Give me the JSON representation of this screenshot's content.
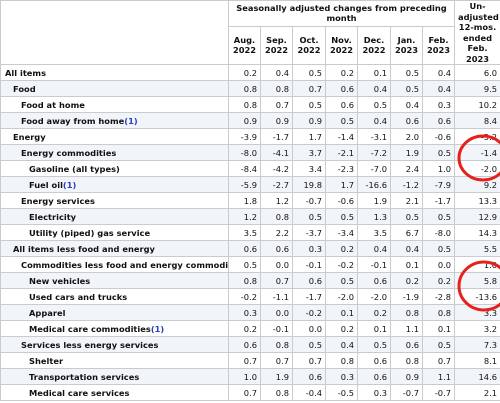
{
  "header": {
    "group": "Seasonally adjusted changes from preceding month",
    "months": [
      "Aug. 2022",
      "Sep. 2022",
      "Oct. 2022",
      "Nov. 2022",
      "Dec. 2022",
      "Jan. 2023",
      "Feb. 2023"
    ],
    "unadjusted": "Un-adjusted 12-mos. ended Feb. 2023"
  },
  "rows": [
    {
      "label": "All items",
      "values": [
        "0.2",
        "0.4",
        "0.5",
        "0.2",
        "0.1",
        "0.5",
        "0.4"
      ],
      "annual": "6.0"
    },
    {
      "label": "Food",
      "values": [
        "0.8",
        "0.8",
        "0.7",
        "0.6",
        "0.4",
        "0.5",
        "0.4"
      ],
      "annual": "9.5"
    },
    {
      "label": "Food at home",
      "values": [
        "0.8",
        "0.7",
        "0.5",
        "0.6",
        "0.5",
        "0.4",
        "0.3"
      ],
      "annual": "10.2"
    },
    {
      "label": "Food away from home",
      "footnote": "(1)",
      "values": [
        "0.9",
        "0.9",
        "0.9",
        "0.5",
        "0.4",
        "0.6",
        "0.6"
      ],
      "annual": "8.4"
    },
    {
      "label": "Energy",
      "values": [
        "-3.9",
        "-1.7",
        "1.7",
        "-1.4",
        "-3.1",
        "2.0",
        "-0.6"
      ],
      "annual": "-5.2"
    },
    {
      "label": "Energy commodities",
      "values": [
        "-8.0",
        "-4.1",
        "3.7",
        "-2.1",
        "-7.2",
        "1.9",
        "0.5"
      ],
      "annual": "-1.4"
    },
    {
      "label": "Gasoline (all types)",
      "values": [
        "-8.4",
        "-4.2",
        "3.4",
        "-2.3",
        "-7.0",
        "2.4",
        "1.0"
      ],
      "annual": "-2.0"
    },
    {
      "label": "Fuel oil",
      "footnote": "(1)",
      "values": [
        "-5.9",
        "-2.7",
        "19.8",
        "1.7",
        "-16.6",
        "-1.2",
        "-7.9"
      ],
      "annual": "9.2"
    },
    {
      "label": "Energy services",
      "values": [
        "1.8",
        "1.2",
        "-0.7",
        "-0.6",
        "1.9",
        "2.1",
        "-1.7"
      ],
      "annual": "13.3"
    },
    {
      "label": "Electricity",
      "values": [
        "1.2",
        "0.8",
        "0.5",
        "0.5",
        "1.3",
        "0.5",
        "0.5"
      ],
      "annual": "12.9"
    },
    {
      "label": "Utility (piped) gas service",
      "values": [
        "3.5",
        "2.2",
        "-3.7",
        "-3.4",
        "3.5",
        "6.7",
        "-8.0"
      ],
      "annual": "14.3"
    },
    {
      "label": "All items less food and energy",
      "values": [
        "0.6",
        "0.6",
        "0.3",
        "0.2",
        "0.4",
        "0.4",
        "0.5"
      ],
      "annual": "5.5"
    },
    {
      "label": "Commodities less food and energy commodities",
      "values": [
        "0.5",
        "0.0",
        "-0.1",
        "-0.2",
        "-0.1",
        "0.1",
        "0.0"
      ],
      "annual": "1.0"
    },
    {
      "label": "New vehicles",
      "values": [
        "0.8",
        "0.7",
        "0.6",
        "0.5",
        "0.6",
        "0.2",
        "0.2"
      ],
      "annual": "5.8"
    },
    {
      "label": "Used cars and trucks",
      "values": [
        "-0.2",
        "-1.1",
        "-1.7",
        "-2.0",
        "-2.0",
        "-1.9",
        "-2.8"
      ],
      "annual": "-13.6"
    },
    {
      "label": "Apparel",
      "values": [
        "0.3",
        "0.0",
        "-0.2",
        "0.1",
        "0.2",
        "0.8",
        "0.8"
      ],
      "annual": "3.3"
    },
    {
      "label": "Medical care commodities",
      "footnote": "(1)",
      "values": [
        "0.2",
        "-0.1",
        "0.0",
        "0.2",
        "0.1",
        "1.1",
        "0.1"
      ],
      "annual": "3.2"
    },
    {
      "label": "Services less energy services",
      "values": [
        "0.6",
        "0.8",
        "0.5",
        "0.4",
        "0.5",
        "0.6",
        "0.5"
      ],
      "annual": "7.3"
    },
    {
      "label": "Shelter",
      "values": [
        "0.7",
        "0.7",
        "0.7",
        "0.8",
        "0.6",
        "0.8",
        "0.7"
      ],
      "annual": "8.1"
    },
    {
      "label": "Transportation services",
      "values": [
        "1.0",
        "1.9",
        "0.6",
        "0.3",
        "0.6",
        "0.9",
        "1.1"
      ],
      "annual": "14.6"
    },
    {
      "label": "Medical care services",
      "values": [
        "0.7",
        "0.8",
        "-0.4",
        "-0.5",
        "0.3",
        "-0.7",
        "-0.7"
      ],
      "annual": "2.1"
    }
  ]
}
